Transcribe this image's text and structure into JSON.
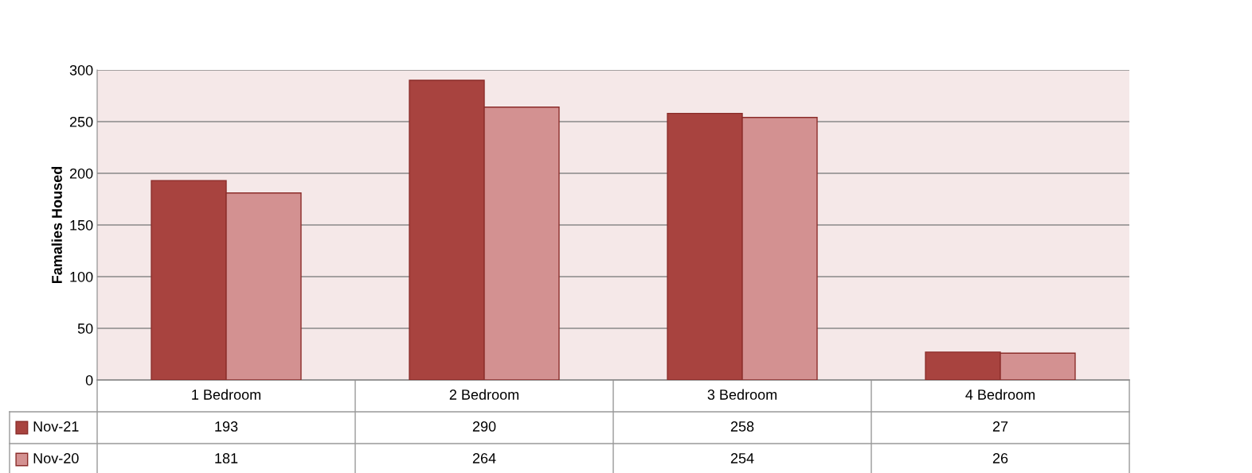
{
  "chart_data": {
    "type": "bar",
    "ylabel": "Famalies Housed",
    "categories": [
      "1 Bedroom",
      "2 Bedroom",
      "3 Bedroom",
      "4 Bedroom"
    ],
    "series": [
      {
        "name": "Nov-21",
        "color": "#a8433f",
        "values": [
          193,
          290,
          258,
          27
        ]
      },
      {
        "name": "Nov-20",
        "color": "#d39191",
        "values": [
          181,
          264,
          254,
          26
        ]
      }
    ],
    "ylim": [
      0,
      300
    ],
    "yticks": [
      0,
      50,
      100,
      150,
      200,
      250,
      300
    ],
    "grid": "y",
    "legend": "bottom",
    "data_labels": true
  }
}
